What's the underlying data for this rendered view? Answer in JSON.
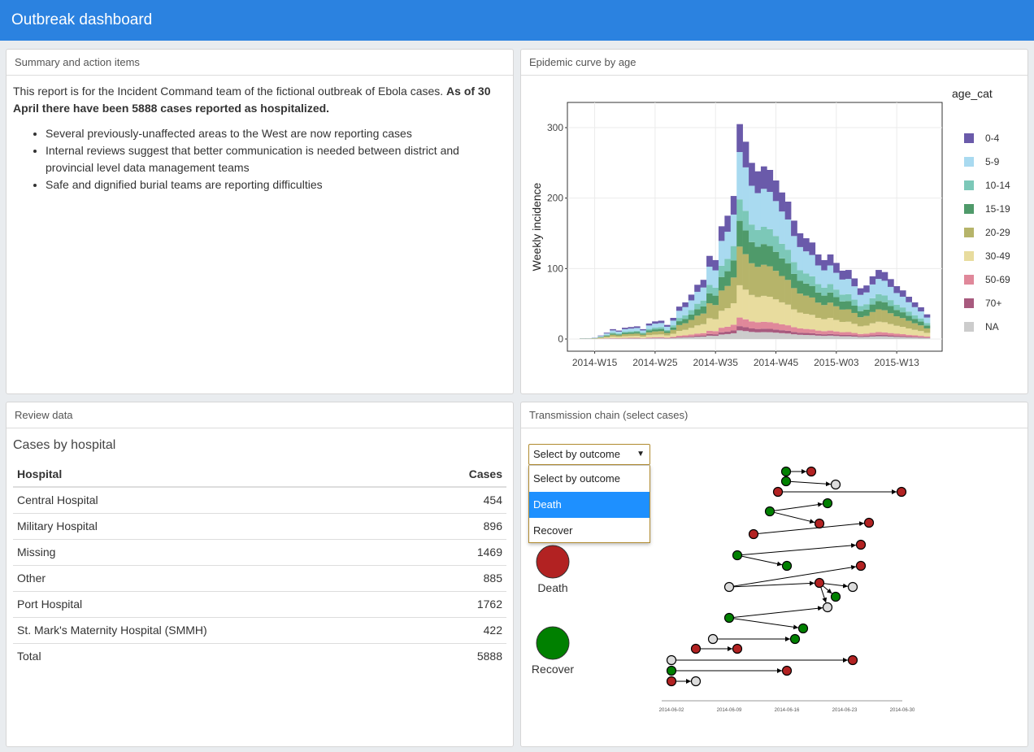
{
  "app": {
    "title": "Outbreak dashboard"
  },
  "summary": {
    "header": "Summary and action items",
    "intro": "This report is for the Incident Command team of the fictional outbreak of Ebola cases. ",
    "intro_bold": "As of 30 April there have been 5888 cases reported as hospitalized.",
    "bullets": [
      "Several previously-unaffected areas to the West are now reporting cases",
      "Internal reviews suggest that better communication is needed between district and provincial level data management teams",
      "Safe and dignified burial teams are reporting difficulties"
    ]
  },
  "epi": {
    "header": "Epidemic curve by age"
  },
  "review": {
    "header": "Review data",
    "table_title": "Cases by hospital",
    "columns": [
      "Hospital",
      "Cases"
    ],
    "rows": [
      [
        "Central Hospital",
        "454"
      ],
      [
        "Military Hospital",
        "896"
      ],
      [
        "Missing",
        "1469"
      ],
      [
        "Other",
        "885"
      ],
      [
        "Port Hospital",
        "1762"
      ],
      [
        "St. Mark's Maternity Hospital (SMMH)",
        "422"
      ],
      [
        "Total",
        "5888"
      ]
    ]
  },
  "chain": {
    "header": "Transmission chain (select cases)",
    "select_value": "Select by outcome",
    "options": [
      "Select by outcome",
      "Death",
      "Recover"
    ],
    "active_option": "Death",
    "legend": [
      {
        "label": "Death",
        "color": "#b22222"
      },
      {
        "label": "Recover",
        "color": "#008000"
      }
    ],
    "unknown_color": "#dcdcdc",
    "dates": [
      "2014-06-02",
      "2014-06-09",
      "2014-06-16",
      "2014-06-23",
      "2014-06-30"
    ]
  },
  "chart_data": {
    "type": "bar",
    "stacked": true,
    "ylabel": "Weekly incidence",
    "ylim": [
      0,
      330
    ],
    "yticks": [
      0,
      100,
      200,
      300
    ],
    "x_tick_labels": [
      "2014-W15",
      "2014-W25",
      "2014-W35",
      "2014-W45",
      "2015-W03",
      "2015-W13"
    ],
    "legend_title": "age_cat",
    "legend_position": "right",
    "grid": true,
    "weeks": [
      "2014-W13",
      "2014-W14",
      "2014-W15",
      "2014-W16",
      "2014-W17",
      "2014-W18",
      "2014-W19",
      "2014-W20",
      "2014-W21",
      "2014-W22",
      "2014-W23",
      "2014-W24",
      "2014-W25",
      "2014-W26",
      "2014-W27",
      "2014-W28",
      "2014-W29",
      "2014-W30",
      "2014-W31",
      "2014-W32",
      "2014-W33",
      "2014-W34",
      "2014-W35",
      "2014-W36",
      "2014-W37",
      "2014-W38",
      "2014-W39",
      "2014-W40",
      "2014-W41",
      "2014-W42",
      "2014-W43",
      "2014-W44",
      "2014-W45",
      "2014-W46",
      "2014-W47",
      "2014-W48",
      "2014-W49",
      "2014-W50",
      "2014-W51",
      "2014-W52",
      "2015-W01",
      "2015-W02",
      "2015-W03",
      "2015-W04",
      "2015-W05",
      "2015-W06",
      "2015-W07",
      "2015-W08",
      "2015-W09",
      "2015-W10",
      "2015-W11",
      "2015-W12",
      "2015-W13",
      "2015-W14",
      "2015-W15",
      "2015-W16",
      "2015-W17",
      "2015-W18"
    ],
    "totals": [
      1,
      1,
      2,
      5,
      9,
      14,
      12,
      16,
      17,
      18,
      14,
      22,
      25,
      26,
      20,
      30,
      46,
      52,
      63,
      77,
      84,
      118,
      112,
      160,
      175,
      203,
      305,
      280,
      250,
      238,
      245,
      240,
      225,
      208,
      195,
      168,
      150,
      143,
      137,
      120,
      112,
      120,
      108,
      97,
      98,
      86,
      72,
      76,
      89,
      98,
      95,
      85,
      75,
      69,
      60,
      52,
      45,
      35
    ],
    "series": [
      {
        "name": "0-4",
        "color": "#6a5aaa",
        "share": 0.13
      },
      {
        "name": "5-9",
        "color": "#a9daf0",
        "share": 0.22
      },
      {
        "name": "10-14",
        "color": "#7cc8b8",
        "share": 0.1
      },
      {
        "name": "15-19",
        "color": "#4f9a6a",
        "share": 0.12
      },
      {
        "name": "20-29",
        "color": "#b6b46a",
        "share": 0.18
      },
      {
        "name": "30-49",
        "color": "#e8dc9e",
        "share": 0.15
      },
      {
        "name": "50-69",
        "color": "#e0889a",
        "share": 0.04
      },
      {
        "name": "70+",
        "color": "#a85a7e",
        "share": 0.02
      },
      {
        "name": "NA",
        "color": "#cccccc",
        "share": 0.04
      }
    ]
  }
}
